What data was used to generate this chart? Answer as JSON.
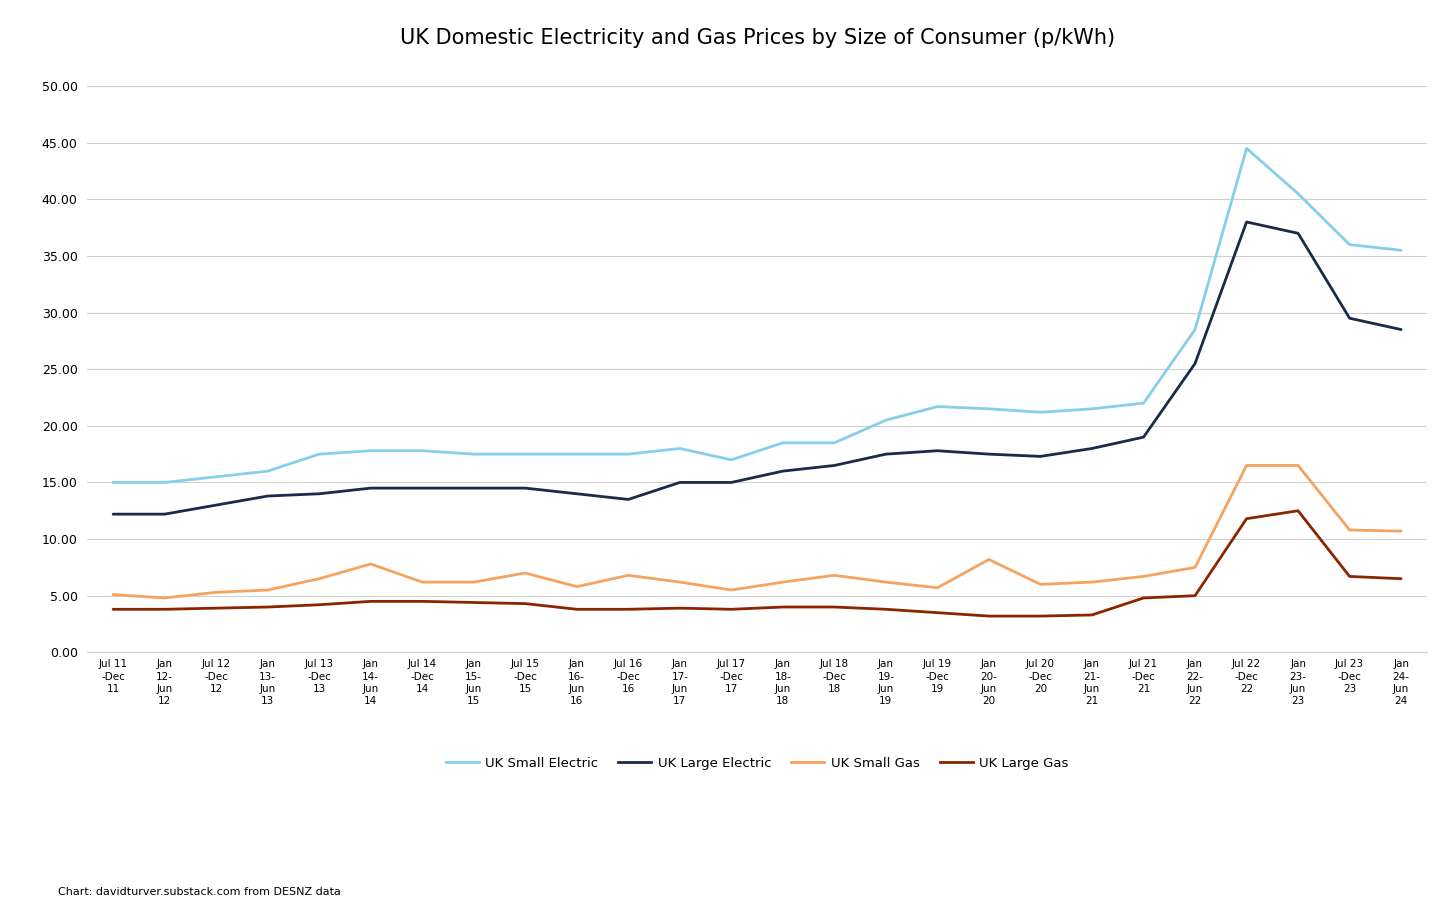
{
  "title": "UK Domestic Electricity and Gas Prices by Size of Consumer (p/kWh)",
  "caption": "Chart: davidturver.substack.com from DESNZ data",
  "ylim": [
    0,
    52
  ],
  "yticks": [
    0.0,
    5.0,
    10.0,
    15.0,
    20.0,
    25.0,
    30.0,
    35.0,
    40.0,
    45.0,
    50.0
  ],
  "x_labels": [
    "Jul 11\n-Dec\n11",
    "Jan\n12-\nJun\n12",
    "Jul 12\n-Dec\n12",
    "Jan\n13-\nJun\n13",
    "Jul 13\n-Dec\n13",
    "Jan\n14-\nJun\n14",
    "Jul 14\n-Dec\n14",
    "Jan\n15-\nJun\n15",
    "Jul 15\n-Dec\n15",
    "Jan\n16-\nJun\n16",
    "Jul 16\n-Dec\n16",
    "Jan\n17-\nJun\n17",
    "Jul 17\n-Dec\n17",
    "Jan\n18-\nJun\n18",
    "Jul 18\n-Dec\n18",
    "Jan\n19-\nJun\n19",
    "Jul 19\n-Dec\n19",
    "Jan\n20-\nJun\n20",
    "Jul 20\n-Dec\n20",
    "Jan\n21-\nJun\n21",
    "Jul 21\n-Dec\n21",
    "Jan\n22-\nJun\n22",
    "Jul 22\n-Dec\n22",
    "Jan\n23-\nJun\n23",
    "Jul 23\n-Dec\n23",
    "Jan\n24-\nJun\n24"
  ],
  "series": {
    "UK Small Electric": {
      "color": "#87CEEB",
      "linewidth": 2.0,
      "values": [
        15.0,
        15.0,
        15.5,
        16.0,
        17.5,
        17.8,
        17.8,
        17.5,
        17.5,
        17.5,
        17.5,
        18.0,
        17.0,
        18.5,
        18.5,
        20.5,
        21.7,
        21.5,
        21.2,
        21.5,
        22.0,
        28.5,
        44.5,
        40.5,
        36.0,
        35.5
      ]
    },
    "UK Large Electric": {
      "color": "#1a2a4a",
      "linewidth": 2.0,
      "values": [
        12.2,
        12.2,
        13.0,
        13.8,
        14.0,
        14.5,
        14.5,
        14.5,
        14.5,
        14.0,
        13.5,
        15.0,
        15.0,
        16.0,
        16.5,
        17.5,
        17.8,
        17.5,
        17.3,
        18.0,
        19.0,
        25.5,
        38.0,
        37.0,
        29.5,
        28.5
      ]
    },
    "UK Small Gas": {
      "color": "#F4A460",
      "linewidth": 2.0,
      "values": [
        5.1,
        4.8,
        5.3,
        5.5,
        6.5,
        7.8,
        6.2,
        6.2,
        7.0,
        5.8,
        6.8,
        6.2,
        5.5,
        6.2,
        6.8,
        6.2,
        5.7,
        8.2,
        6.0,
        6.2,
        6.7,
        7.5,
        16.5,
        16.5,
        10.8,
        10.7
      ]
    },
    "UK Large Gas": {
      "color": "#8B2500",
      "linewidth": 2.0,
      "values": [
        3.8,
        3.8,
        3.9,
        4.0,
        4.2,
        4.5,
        4.5,
        4.4,
        4.3,
        3.8,
        3.8,
        3.9,
        3.8,
        4.0,
        4.0,
        3.8,
        3.5,
        3.2,
        3.2,
        3.3,
        4.8,
        5.0,
        11.8,
        12.5,
        6.7,
        6.5
      ]
    }
  },
  "legend_entries": [
    "UK Small Electric",
    "UK Large Electric",
    "UK Small Gas",
    "UK Large Gas"
  ],
  "legend_colors": [
    "#87CEEB",
    "#1a2a4a",
    "#F4A460",
    "#8B2500"
  ],
  "background_color": "#ffffff",
  "grid_color": "#d0d0d0"
}
